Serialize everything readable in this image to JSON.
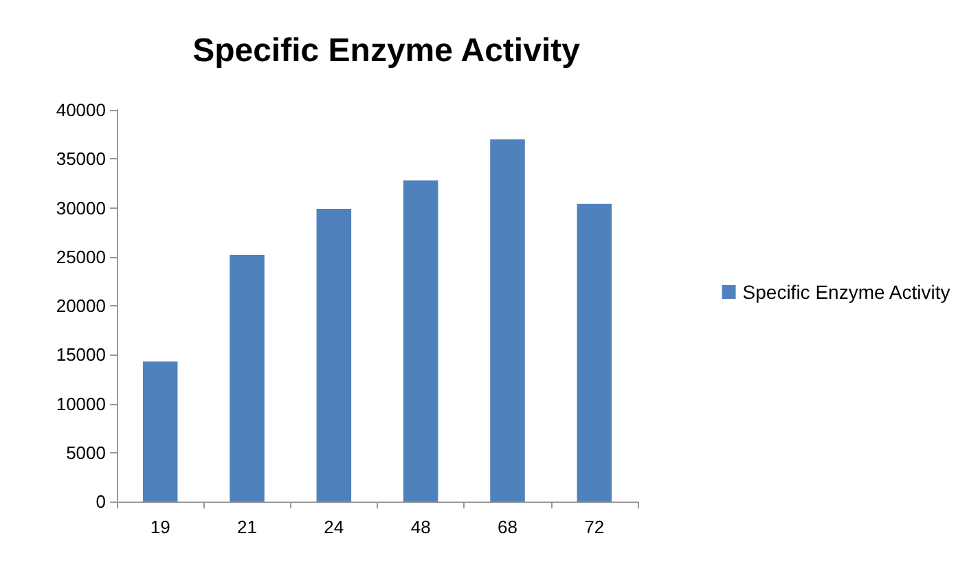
{
  "chart_data": {
    "type": "bar",
    "title": "Specific Enzyme Activity",
    "categories": [
      "19",
      "21",
      "24",
      "48",
      "68",
      "72"
    ],
    "series": [
      {
        "name": "Specific Enzyme Activity",
        "color": "#4f81bd",
        "values": [
          14300,
          25200,
          29900,
          32800,
          37000,
          30400
        ]
      }
    ],
    "ylim": [
      0,
      40000
    ],
    "yticks": [
      0,
      5000,
      10000,
      15000,
      20000,
      25000,
      30000,
      35000,
      40000
    ],
    "grid": false,
    "legend": "right"
  }
}
